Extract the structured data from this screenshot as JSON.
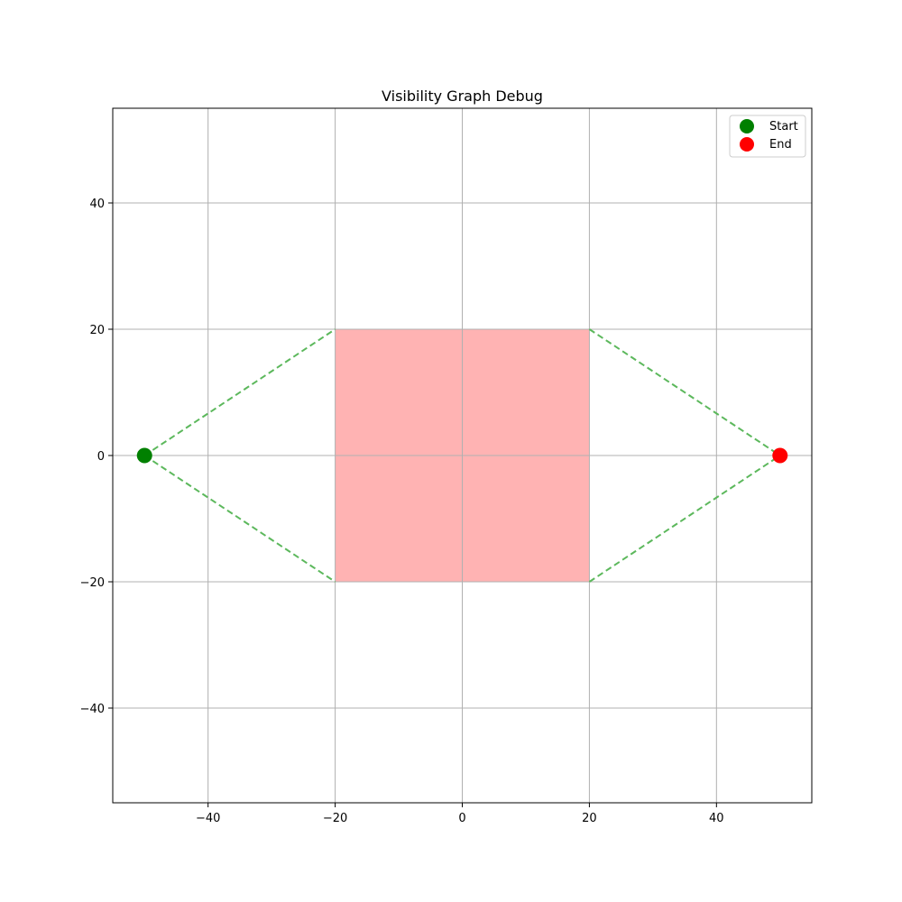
{
  "chart_data": {
    "type": "scatter",
    "title": "Visibility Graph Debug",
    "xlabel": "",
    "ylabel": "",
    "xlim": [
      -55,
      55
    ],
    "ylim": [
      -55,
      55
    ],
    "grid": true,
    "xticks": [
      -40,
      -20,
      0,
      20,
      40
    ],
    "yticks": [
      -40,
      -20,
      0,
      20,
      40
    ],
    "legend_position": "top-right",
    "obstacle": {
      "vertices": [
        [
          -20,
          -20
        ],
        [
          20,
          -20
        ],
        [
          20,
          20
        ],
        [
          -20,
          20
        ]
      ],
      "color": "#ffb3b3"
    },
    "visibility_edges": [
      {
        "from": [
          -50,
          0
        ],
        "to": [
          -20,
          20
        ]
      },
      {
        "from": [
          -50,
          0
        ],
        "to": [
          -20,
          -20
        ]
      },
      {
        "from": [
          20,
          20
        ],
        "to": [
          50,
          0
        ]
      },
      {
        "from": [
          20,
          -20
        ],
        "to": [
          50,
          0
        ]
      }
    ],
    "edge_color": "#5cb85c",
    "series": [
      {
        "name": "Start",
        "x": [
          -50
        ],
        "y": [
          0
        ],
        "color": "#008000"
      },
      {
        "name": "End",
        "x": [
          50
        ],
        "y": [
          0
        ],
        "color": "#ff0000"
      }
    ]
  }
}
